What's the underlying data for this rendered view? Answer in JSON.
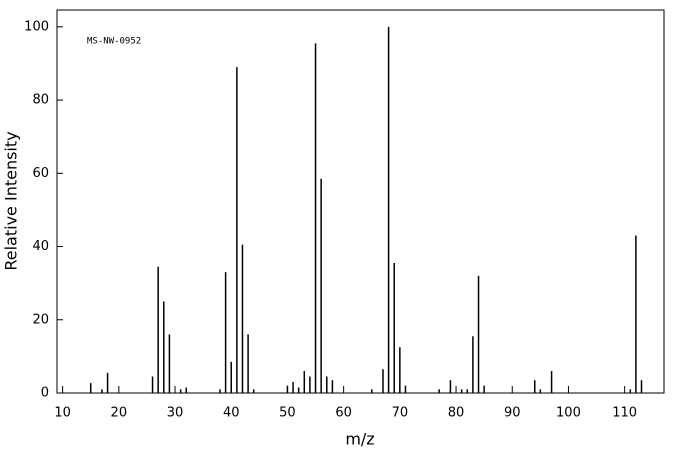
{
  "chart_data": {
    "type": "stem",
    "annotation": "MS-NW-0952",
    "x_label": "m/z",
    "y_label": "Relative Intensity",
    "color": "#000000",
    "x": [
      15,
      17,
      18,
      26,
      27,
      28,
      29,
      31,
      32,
      38,
      39,
      40,
      41,
      42,
      43,
      44,
      50,
      51,
      52,
      53,
      54,
      55,
      56,
      57,
      58,
      65,
      67,
      68,
      69,
      70,
      71,
      77,
      79,
      81,
      82,
      83,
      84,
      85,
      94,
      95,
      97,
      111,
      112,
      113
    ],
    "values": [
      2.7,
      1,
      5.5,
      4.5,
      34.5,
      25,
      16,
      1,
      1.5,
      1,
      33,
      8.5,
      89,
      40.5,
      16,
      1,
      2,
      3,
      1.5,
      6,
      4.5,
      95.5,
      58.5,
      4.5,
      3.5,
      1,
      6.5,
      100,
      35.5,
      12.5,
      2,
      1,
      3.5,
      1,
      1,
      15.5,
      32,
      2,
      3.5,
      1,
      6,
      1,
      43,
      3.5
    ],
    "xlim": [
      9,
      117
    ],
    "ylim": [
      0,
      104.6
    ],
    "xticks": [
      10,
      20,
      30,
      40,
      50,
      60,
      70,
      80,
      90,
      100,
      110
    ],
    "yticks": [
      0,
      20,
      40,
      60,
      80,
      100
    ]
  }
}
